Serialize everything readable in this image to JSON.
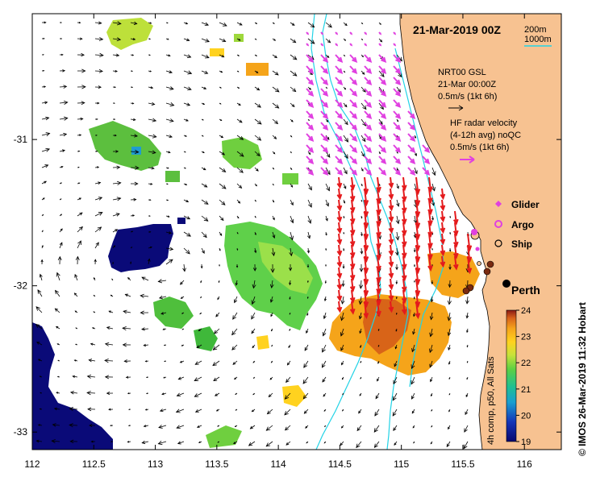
{
  "map": {
    "date_title": "21-Mar-2019 00Z",
    "bathy_legend": [
      "200m",
      "1000m"
    ],
    "model_block": [
      "NRT00 GSL",
      "21-Mar 00:00Z",
      "0.5m/s (1kt 6h)"
    ],
    "hf_block": [
      "HF radar velocity",
      "(4-12h avg) noQC",
      "0.5m/s (1kt 6h)"
    ],
    "symbol_legend": [
      {
        "label": "Glider",
        "color": "#e040e0",
        "kind": "glider"
      },
      {
        "label": "Argo",
        "color": "#e040e0",
        "kind": "argo"
      },
      {
        "label": "Ship",
        "color": "#000000",
        "kind": "ship"
      }
    ],
    "city_label": "Perth",
    "credit": "© IMOS 26-Mar-2019 11:32 Hobart",
    "x_ticks": [
      "112",
      "112.5",
      "113",
      "113.5",
      "114",
      "114.5",
      "115",
      "115.5",
      "116"
    ],
    "y_ticks": [
      "-31",
      "-32",
      "-33"
    ],
    "colorbar": {
      "title": "4h comp, p50, All Sats",
      "ticks": [
        "24",
        "23",
        "22",
        "21",
        "20",
        "19"
      ],
      "range_c": [
        19,
        24
      ]
    },
    "colors": {
      "land": "#f7c291",
      "bathy": "#22d3e6",
      "hf_vectors": "#e41a1c",
      "hf_vectors_north": "#e040e0",
      "model_vectors": "#000000",
      "cold_sst": "#0a0a78"
    }
  }
}
